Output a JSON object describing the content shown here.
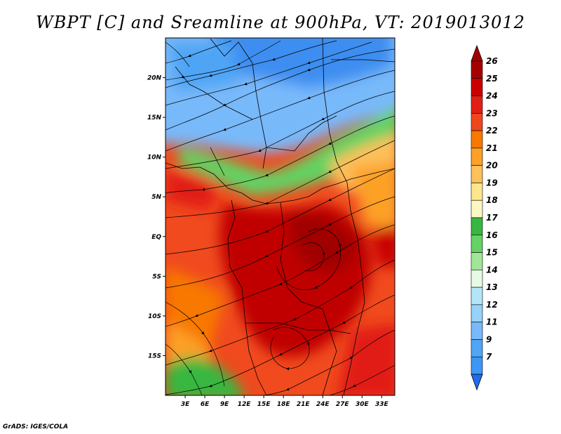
{
  "title": "WBPT [C] and Sreamline at 900hPa, VT: 2019013012",
  "footer": "GrADS: IGES/COLA",
  "map": {
    "lon_range": [
      0,
      35
    ],
    "lat_range": [
      -20,
      25
    ],
    "lat_ticks": [
      {
        "value": 20,
        "label": "20N"
      },
      {
        "value": 15,
        "label": "15N"
      },
      {
        "value": 10,
        "label": "10N"
      },
      {
        "value": 5,
        "label": "5N"
      },
      {
        "value": 0,
        "label": "EQ"
      },
      {
        "value": -5,
        "label": "5S"
      },
      {
        "value": -10,
        "label": "10S"
      },
      {
        "value": -15,
        "label": "15S"
      }
    ],
    "lon_ticks": [
      {
        "value": 3,
        "label": "3E"
      },
      {
        "value": 6,
        "label": "6E"
      },
      {
        "value": 9,
        "label": "9E"
      },
      {
        "value": 12,
        "label": "12E"
      },
      {
        "value": 15,
        "label": "15E"
      },
      {
        "value": 18,
        "label": "18E"
      },
      {
        "value": 21,
        "label": "21E"
      },
      {
        "value": 24,
        "label": "24E"
      },
      {
        "value": 27,
        "label": "27E"
      },
      {
        "value": 30,
        "label": "30E"
      },
      {
        "value": 33,
        "label": "33E"
      }
    ]
  },
  "colorbar": {
    "levels": [
      {
        "label": "26",
        "color": "#a50000"
      },
      {
        "label": "25",
        "color": "#c80000"
      },
      {
        "label": "24",
        "color": "#e11e14"
      },
      {
        "label": "23",
        "color": "#f0461e"
      },
      {
        "label": "22",
        "color": "#f87800"
      },
      {
        "label": "21",
        "color": "#fca028"
      },
      {
        "label": "20",
        "color": "#fdc05a"
      },
      {
        "label": "19",
        "color": "#fde68c"
      },
      {
        "label": "18",
        "color": "#fdf7c4"
      },
      {
        "label": "17",
        "color": "#37b741"
      },
      {
        "label": "16",
        "color": "#64d264"
      },
      {
        "label": "15",
        "color": "#a0e696"
      },
      {
        "label": "14",
        "color": "#e6fae6"
      },
      {
        "label": "13",
        "color": "#b4e6fa"
      },
      {
        "label": "12",
        "color": "#96d2fa"
      },
      {
        "label": "11",
        "color": "#78b9fa"
      },
      {
        "label": "9",
        "color": "#50a5f5"
      },
      {
        "label": "7",
        "color": "#3c97f5"
      }
    ],
    "below_color": "#1e6eeb"
  }
}
